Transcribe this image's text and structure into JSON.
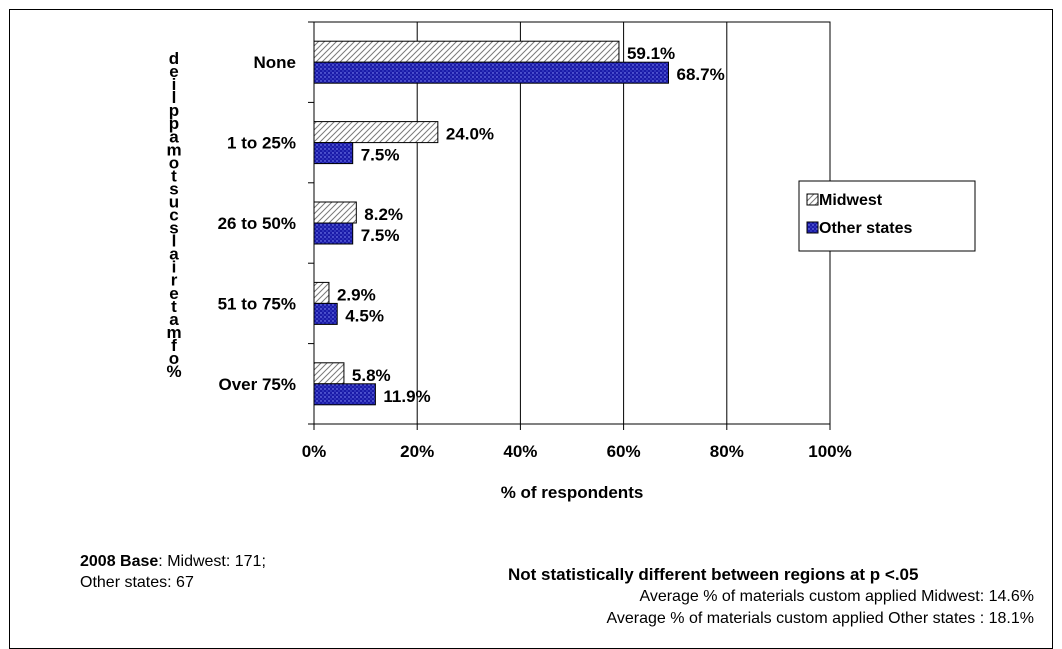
{
  "chart_data": {
    "type": "bar",
    "orientation": "horizontal",
    "title": "",
    "xlabel": "% of respondents",
    "ylabel": "% of materials custom applied",
    "categories": [
      "None",
      "1 to 25%",
      "26 to 50%",
      "51 to 75%",
      "Over 75%"
    ],
    "series": [
      {
        "name": "Midwest",
        "values": [
          59.1,
          24.0,
          8.2,
          2.9,
          5.8
        ],
        "labels": [
          "59.1%",
          "24.0%",
          "8.2%",
          "2.9%",
          "5.8%"
        ],
        "color": "#ffffff",
        "pattern": "hatched"
      },
      {
        "name": "Other states",
        "values": [
          68.7,
          7.5,
          7.5,
          4.5,
          11.9
        ],
        "labels": [
          "68.7%",
          "7.5%",
          "7.5%",
          "4.5%",
          "11.9%"
        ],
        "color": "#1a1aa8",
        "pattern": "dotted"
      }
    ],
    "xlim": [
      0,
      100
    ],
    "xticks": [
      "0%",
      "20%",
      "40%",
      "60%",
      "80%",
      "100%"
    ],
    "grid": true,
    "legend_position": "right"
  },
  "notes": {
    "base_label": "2008 Base",
    "base_text": ": Midwest: 171;",
    "base_text2": "Other states: 67",
    "significance": "Not statistically different between regions at p <.05",
    "avg_midwest": "Average % of materials custom applied Midwest:  14.6%",
    "avg_other": "Average % of materials custom applied Other states :  18.1%"
  }
}
